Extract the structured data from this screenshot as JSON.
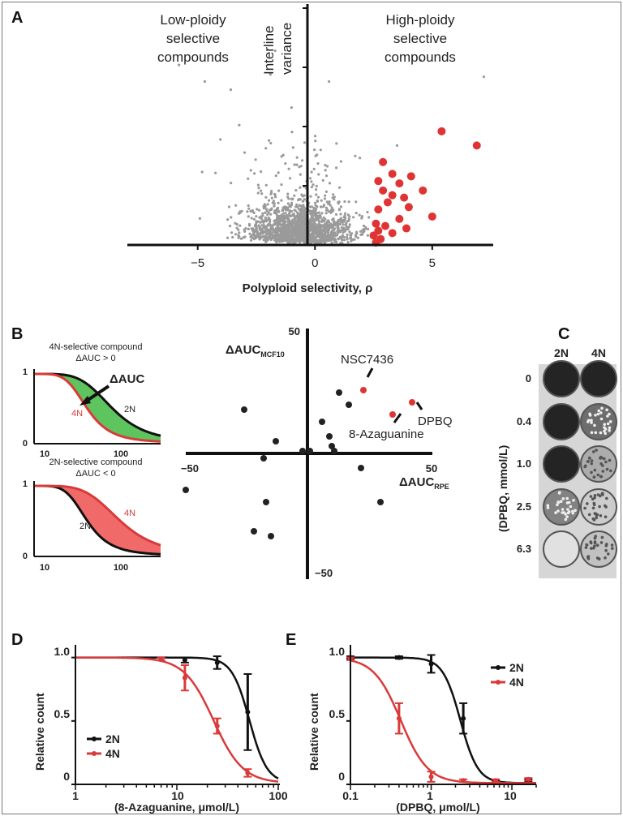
{
  "panels": {
    "a": "A",
    "b": "B",
    "c": "C",
    "d": "D",
    "e": "E"
  },
  "chart_data": [
    {
      "type": "scatter",
      "id": "A",
      "annotations": {
        "left_line1": "Low-ploidy",
        "left_line2": "selective",
        "left_line3": "compounds",
        "right_line1": "High-ploidy",
        "right_line2": "selective",
        "right_line3": "compounds",
        "yaxis_line1": "Interline",
        "yaxis_line2": "variance"
      },
      "xlabel": "Polyploid selectivity, ρ",
      "xticks": [
        "−5",
        "0",
        "5"
      ],
      "xtick_values": [
        -5,
        0,
        5
      ],
      "xlim": [
        -8,
        7.6
      ],
      "ylim": [
        0,
        10
      ],
      "grid": false,
      "colors": {
        "background_points": "#9a9a9a",
        "selected_points": "#e03434"
      },
      "selected_points": [
        {
          "x": 5.4,
          "y": 4.8
        },
        {
          "x": 6.9,
          "y": 4.2
        },
        {
          "x": 2.9,
          "y": 3.5
        },
        {
          "x": 3.3,
          "y": 3.0
        },
        {
          "x": 2.7,
          "y": 2.7
        },
        {
          "x": 3.6,
          "y": 2.6
        },
        {
          "x": 4.1,
          "y": 2.9
        },
        {
          "x": 4.6,
          "y": 2.3
        },
        {
          "x": 2.9,
          "y": 2.3
        },
        {
          "x": 3.3,
          "y": 2.1
        },
        {
          "x": 3.8,
          "y": 2.0
        },
        {
          "x": 3.1,
          "y": 1.8
        },
        {
          "x": 4.0,
          "y": 1.6
        },
        {
          "x": 2.7,
          "y": 1.5
        },
        {
          "x": 5.0,
          "y": 1.2
        },
        {
          "x": 3.6,
          "y": 1.1
        },
        {
          "x": 2.6,
          "y": 0.9
        },
        {
          "x": 3.0,
          "y": 0.8
        },
        {
          "x": 2.7,
          "y": 0.6
        },
        {
          "x": 3.3,
          "y": 0.5
        },
        {
          "x": 2.5,
          "y": 0.4
        },
        {
          "x": 2.8,
          "y": 0.25
        },
        {
          "x": 2.6,
          "y": 0.1
        },
        {
          "x": 3.9,
          "y": 0.7
        }
      ]
    },
    {
      "type": "schematic",
      "id": "B-left",
      "top": {
        "title_line1": "4N-selective compound",
        "title_line2": "ΔAUC > 0",
        "area_label": "ΔAUC",
        "label_2n": "2N",
        "label_4n": "4N",
        "fill": "#5ec45e"
      },
      "bottom": {
        "title_line1": "2N-selective compound",
        "title_line2": "ΔAUC < 0",
        "label_2n": "2N",
        "label_4n": "4N",
        "fill": "#f06a6a"
      },
      "yticks": [
        "1",
        "0"
      ],
      "xticks": [
        "10",
        "100"
      ],
      "colors": {
        "curve_2n": "#111111",
        "curve_4n": "#d93a3a"
      }
    },
    {
      "type": "scatter",
      "id": "B-right",
      "xlabel": "ΔAUC",
      "xlabel_sub": "RPE",
      "ylabel": "ΔAUC",
      "ylabel_sub": "MCF10",
      "xlim": [
        -50,
        50
      ],
      "ylim": [
        -50,
        50
      ],
      "tick_labels": {
        "x_min": "−50",
        "x_max": "50",
        "y_max": "50",
        "y_min": "−50"
      },
      "highlighted": [
        {
          "name": "NSC7436",
          "x": 23,
          "y": 26
        },
        {
          "name": "8-Azaguanine",
          "x": 35,
          "y": 16
        },
        {
          "name": "DPBQ",
          "x": 43,
          "y": 21
        }
      ],
      "points": [
        {
          "x": -26,
          "y": 18
        },
        {
          "x": 13,
          "y": 25
        },
        {
          "x": 17,
          "y": 20
        },
        {
          "x": 6,
          "y": 13
        },
        {
          "x": -13,
          "y": 5
        },
        {
          "x": -2,
          "y": 1
        },
        {
          "x": 1,
          "y": 1
        },
        {
          "x": 9,
          "y": 7
        },
        {
          "x": 10,
          "y": 3
        },
        {
          "x": 11,
          "y": 1
        },
        {
          "x": 22,
          "y": -6
        },
        {
          "x": -18,
          "y": -2
        },
        {
          "x": -50,
          "y": -15
        },
        {
          "x": -17,
          "y": -20
        },
        {
          "x": 30,
          "y": -20
        },
        {
          "x": -22,
          "y": -32
        },
        {
          "x": -15,
          "y": -34
        }
      ],
      "colors": {
        "points": "#222222",
        "highlight": "#e03434"
      }
    },
    {
      "type": "table",
      "id": "C",
      "columns": [
        "2N",
        "4N"
      ],
      "rows": [
        "0",
        "0.4",
        "1.0",
        "2.5",
        "6.3"
      ],
      "ylabel": "(DPBQ, mmol/L)",
      "well_darkness": [
        [
          0.95,
          0.95
        ],
        [
          0.95,
          0.6
        ],
        [
          0.95,
          0.3
        ],
        [
          0.5,
          0.15
        ],
        [
          0.05,
          0.2
        ]
      ]
    },
    {
      "type": "line",
      "id": "D",
      "xlabel": "(8-Azaguanine, μmol/L)",
      "ylabel": "Relative count",
      "xscale": "log",
      "xlim": [
        1,
        100
      ],
      "ylim": [
        0,
        1.1
      ],
      "xticks": [
        "1",
        "10",
        "100"
      ],
      "yticks": [
        "0",
        "0.5",
        "1.0"
      ],
      "series": [
        {
          "name": "2N",
          "color": "#111111",
          "points": [
            {
              "x": 12,
              "y": 0.98,
              "err": 0.02
            },
            {
              "x": 25,
              "y": 0.96,
              "err": 0.05
            },
            {
              "x": 50,
              "y": 0.57,
              "err": 0.3
            }
          ],
          "ec50": 52,
          "hill": 5
        },
        {
          "name": "4N",
          "color": "#d93a3a",
          "points": [
            {
              "x": 7,
              "y": 0.99,
              "err": 0.01
            },
            {
              "x": 12,
              "y": 0.84,
              "err": 0.1
            },
            {
              "x": 25,
              "y": 0.46,
              "err": 0.06
            },
            {
              "x": 50,
              "y": 0.09,
              "err": 0.03
            }
          ],
          "ec50": 23,
          "hill": 3
        }
      ]
    },
    {
      "type": "line",
      "id": "E",
      "xlabel": "(DPBQ, μmol/L)",
      "ylabel": "Relative count",
      "xscale": "log",
      "xlim": [
        0.1,
        20
      ],
      "ylim": [
        0,
        1.1
      ],
      "xticks": [
        "0.1",
        "1",
        "10"
      ],
      "yticks": [
        "0",
        "0.5",
        "1.0"
      ],
      "series": [
        {
          "name": "2N",
          "color": "#111111",
          "points": [
            {
              "x": 0.1,
              "y": 1.0,
              "err": 0.01
            },
            {
              "x": 0.4,
              "y": 1.0,
              "err": 0.01
            },
            {
              "x": 1.0,
              "y": 0.95,
              "err": 0.07
            },
            {
              "x": 2.5,
              "y": 0.52,
              "err": 0.12
            },
            {
              "x": 6.3,
              "y": 0.02,
              "err": 0.01
            },
            {
              "x": 16,
              "y": 0.03,
              "err": 0.01
            }
          ],
          "ec50": 2.3,
          "hill": 4
        },
        {
          "name": "4N",
          "color": "#d93a3a",
          "points": [
            {
              "x": 0.1,
              "y": 0.99,
              "err": 0.01
            },
            {
              "x": 0.4,
              "y": 0.52,
              "err": 0.12
            },
            {
              "x": 1.0,
              "y": 0.06,
              "err": 0.04
            },
            {
              "x": 2.5,
              "y": 0.03,
              "err": 0.01
            },
            {
              "x": 6.3,
              "y": 0.03,
              "err": 0.01
            },
            {
              "x": 16,
              "y": 0.04,
              "err": 0.01
            }
          ],
          "ec50": 0.42,
          "hill": 2.6
        }
      ]
    }
  ]
}
